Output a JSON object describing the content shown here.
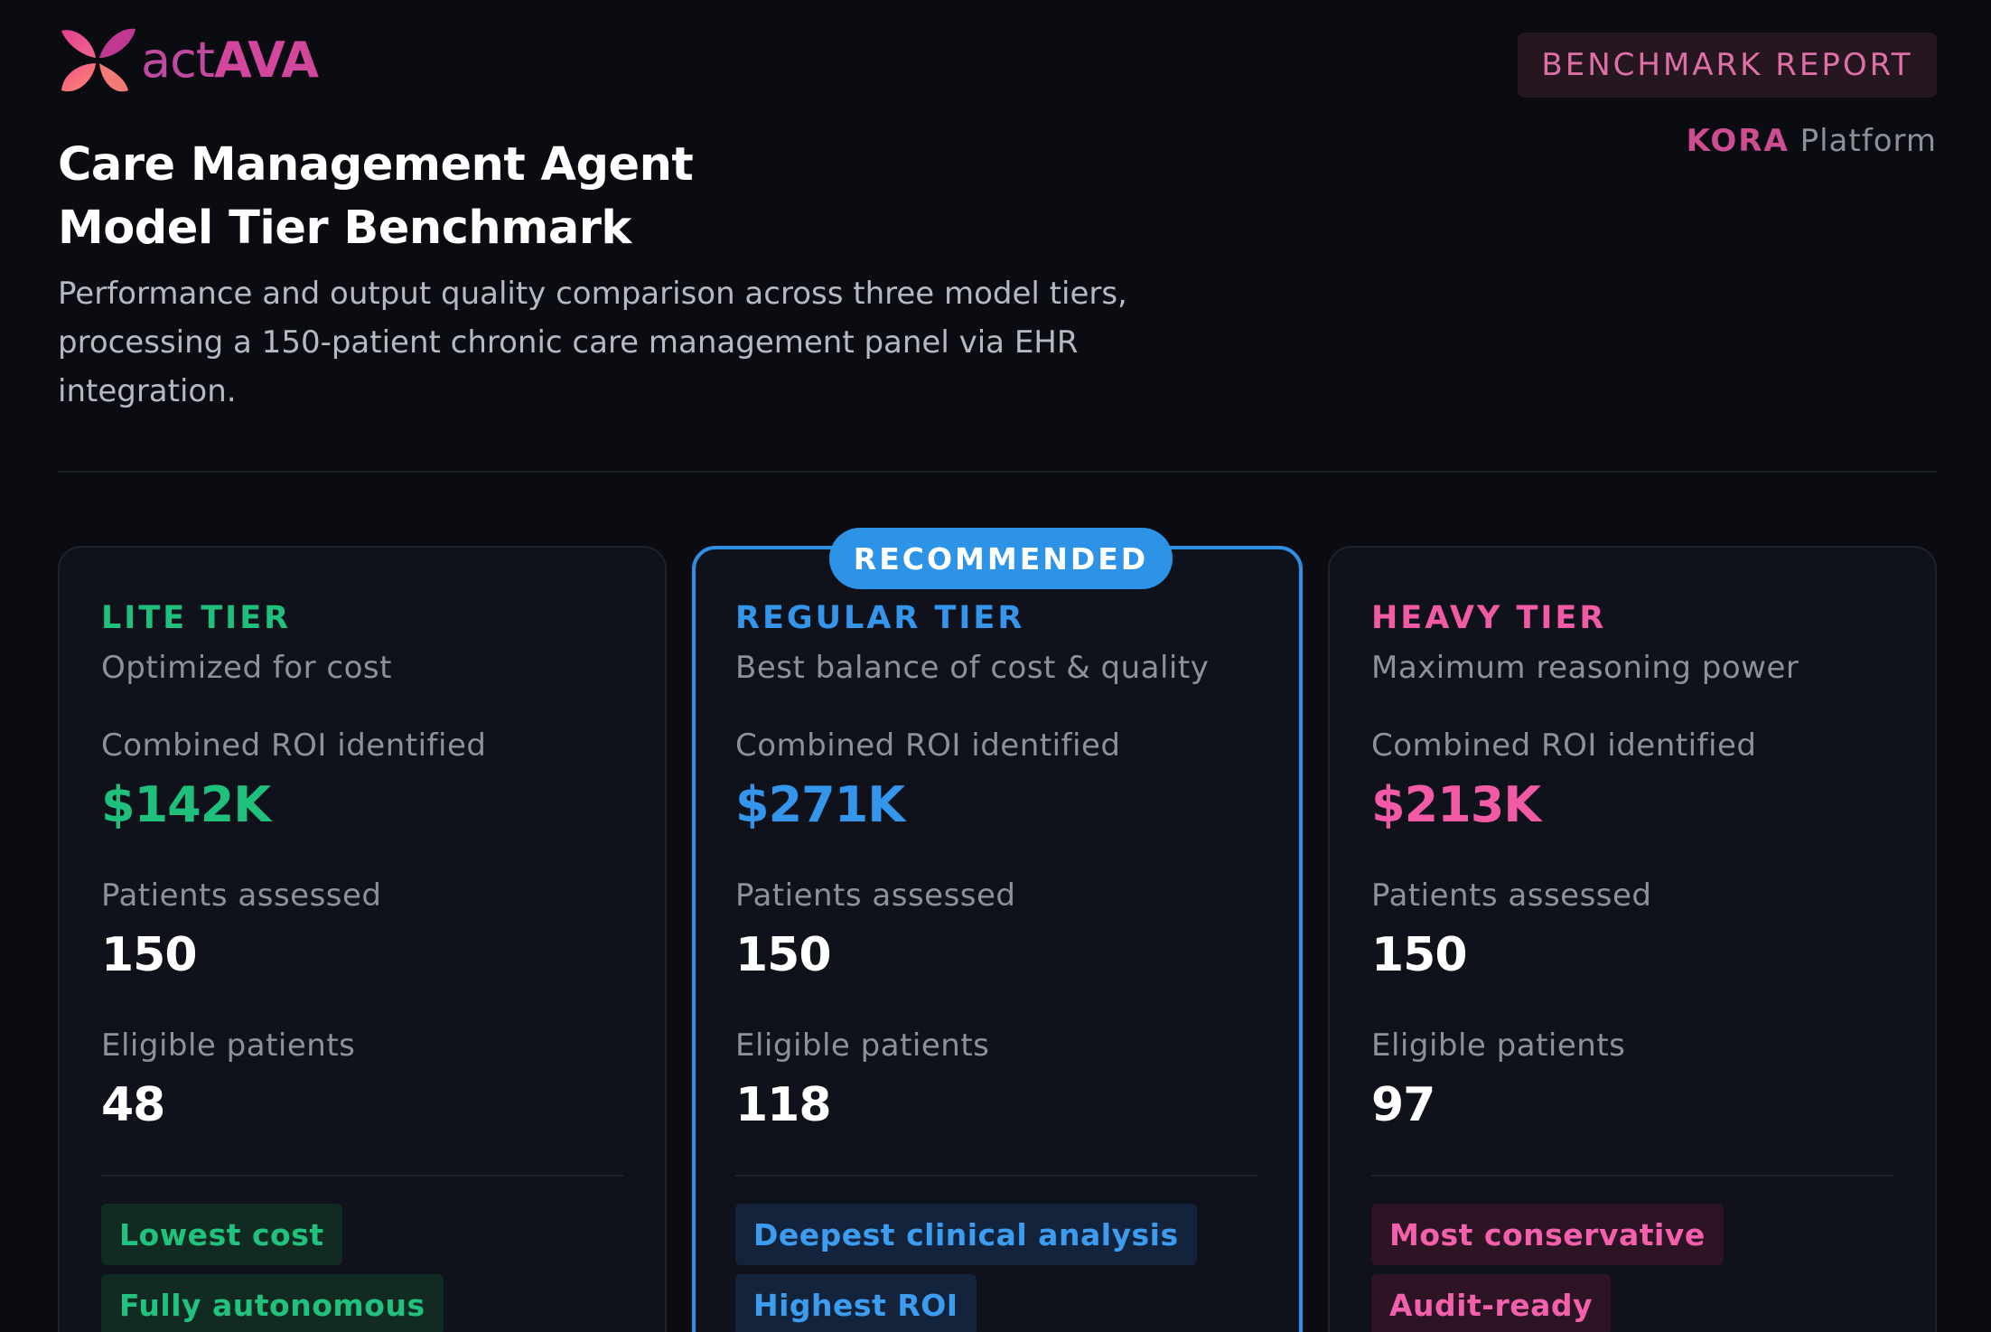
{
  "brand": {
    "logo_act": "act",
    "logo_ava": "AVA"
  },
  "header": {
    "badge": "BENCHMARK REPORT",
    "platform_name": "KORA",
    "platform_suffix": "Platform",
    "title_line1": "Care Management Agent",
    "title_line2": "Model Tier Benchmark",
    "subtitle": "Performance and output quality comparison across three model tiers, processing a 150-patient chronic care management panel via EHR integration."
  },
  "labels": {
    "roi": "Combined ROI identified",
    "patients": "Patients assessed",
    "eligible": "Eligible patients"
  },
  "tiers": [
    {
      "name": "LITE TIER",
      "description": "Optimized for cost",
      "roi": "$142K",
      "patients_assessed": "150",
      "eligible_patients": "48",
      "tags": [
        "Lowest cost",
        "Fully autonomous"
      ],
      "accent": "#1fbf7c"
    },
    {
      "name": "REGULAR TIER",
      "badge": "RECOMMENDED",
      "description": "Best balance of cost & quality",
      "roi": "$271K",
      "patients_assessed": "150",
      "eligible_patients": "118",
      "tags": [
        "Deepest clinical analysis",
        "Highest ROI"
      ],
      "accent": "#3396ec"
    },
    {
      "name": "HEAVY TIER",
      "description": "Maximum reasoning power",
      "roi": "$213K",
      "patients_assessed": "150",
      "eligible_patients": "97",
      "tags": [
        "Most conservative",
        "Audit-ready"
      ],
      "accent": "#f25aa6"
    }
  ],
  "colors": {
    "background": "#0b0c11",
    "card": "#10121b",
    "brand_pink": "#d2479b"
  },
  "icons": {
    "logo": "butterfly-logo-icon"
  }
}
